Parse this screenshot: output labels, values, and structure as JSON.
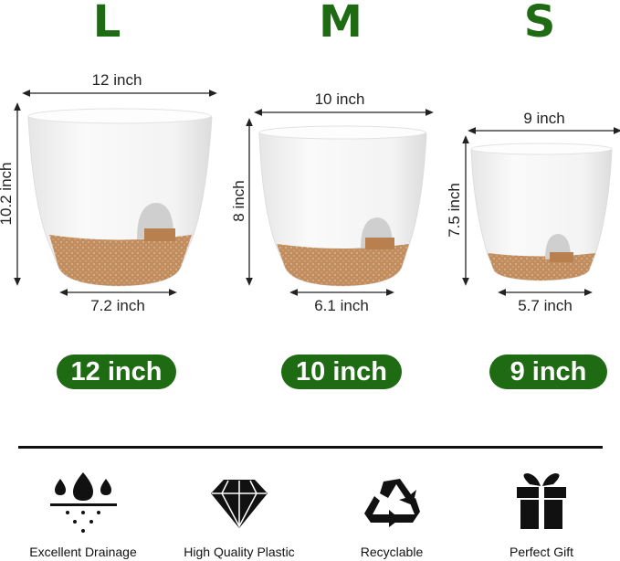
{
  "sizes": [
    {
      "letter": "L",
      "width": "12 inch",
      "height": "10.2 inch",
      "bottom": "7.2 inch",
      "badge": "12 inch"
    },
    {
      "letter": "M",
      "width": "10 inch",
      "height": "8 inch",
      "bottom": "6.1 inch",
      "badge": "10 inch"
    },
    {
      "letter": "S",
      "width": "9 inch",
      "height": "7.5 inch",
      "bottom": "5.7 inch",
      "badge": "9 inch"
    }
  ],
  "features": [
    {
      "icon": "drainage-icon",
      "label": "Excellent Drainage"
    },
    {
      "icon": "diamond-icon",
      "label": "High Quality Plastic"
    },
    {
      "icon": "recycle-icon",
      "label": "Recyclable"
    },
    {
      "icon": "gift-icon",
      "label": "Perfect Gift"
    }
  ],
  "colors": {
    "accent": "#1f6b14",
    "pot_white": "#f4f4f4",
    "pot_base": "#c28d5e"
  }
}
